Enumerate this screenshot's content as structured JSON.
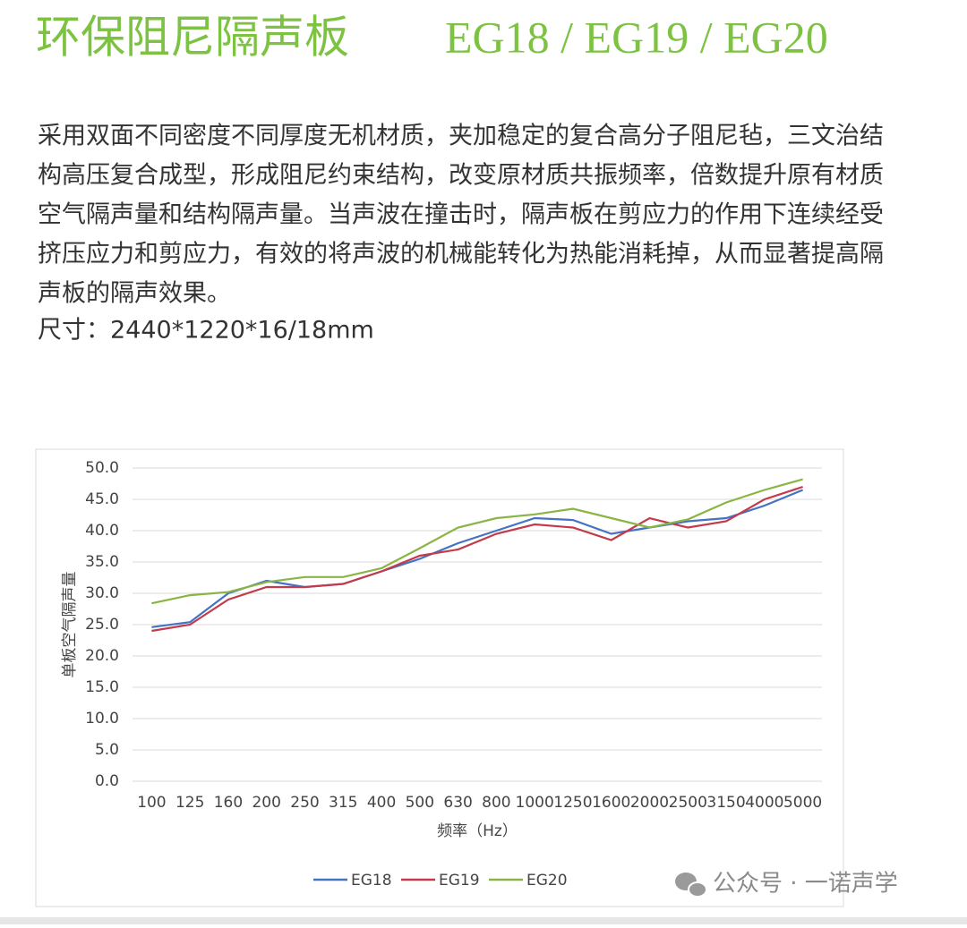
{
  "header": {
    "title": "环保阻尼隔声板",
    "models": "EG18 / EG19 / EG20"
  },
  "description": {
    "lines": [
      "采用双面不同密度不同厚度无机材质，夹加稳定的复合高分子阻尼毡，三文治结",
      "构高压复合成型，形成阻尼约束结构，改变原材质共振频率，倍数提升原有材质",
      "空气隔声量和结构隔声量。当声波在撞击时，隔声板在剪应力的作用下连续经受",
      "挤压应力和剪应力，有效的将声波的机械能转化为热能消耗掉，从而显著提高隔",
      "声板的隔声效果。"
    ],
    "size": "尺寸：2440*1220*16/18mm"
  },
  "chart_data": {
    "type": "line",
    "x_label": "频率（Hz）",
    "y_label": "单板空气隔声量",
    "categories": [
      "100",
      "125",
      "160",
      "200",
      "250",
      "315",
      "400",
      "500",
      "630",
      "800",
      "1000",
      "1250",
      "1600",
      "2000",
      "2500",
      "3150",
      "4000",
      "5000"
    ],
    "series": [
      {
        "name": "EG18",
        "color": "#4472c4",
        "values": [
          24.6,
          25.4,
          30,
          32,
          31,
          31.5,
          33.5,
          35.5,
          38,
          40,
          42,
          41.7,
          39.5,
          40.5,
          41.5,
          42,
          44,
          46.5
        ]
      },
      {
        "name": "EG19",
        "color": "#c33b4a",
        "values": [
          24,
          25,
          29,
          31,
          31,
          31.5,
          33.5,
          36,
          37,
          39.5,
          41,
          40.5,
          38.5,
          42,
          40.5,
          41.5,
          45,
          47
        ]
      },
      {
        "name": "EG20",
        "color": "#8ab545",
        "values": [
          28.4,
          29.7,
          30.2,
          31.8,
          32.6,
          32.6,
          34,
          37.2,
          40.5,
          42,
          42.6,
          43.5,
          42,
          40.5,
          41.8,
          44.5,
          46.5,
          48.2
        ]
      }
    ],
    "ylim": [
      0,
      50
    ],
    "yticks": [
      {
        "value": 0,
        "label": "0.0"
      },
      {
        "value": 5,
        "label": "5.0"
      },
      {
        "value": 10,
        "label": "10.0"
      },
      {
        "value": 15,
        "label": "15.0"
      },
      {
        "value": 20,
        "label": "20.0"
      },
      {
        "value": 25,
        "label": "25.0"
      },
      {
        "value": 30,
        "label": "30.0"
      },
      {
        "value": 35,
        "label": "35.0"
      },
      {
        "value": 40,
        "label": "40.0"
      },
      {
        "value": 45,
        "label": "45.0"
      },
      {
        "value": 50,
        "label": "50.0"
      }
    ],
    "grid": true,
    "legend": "bottom"
  },
  "watermark": "公众号 · 一诺声学"
}
